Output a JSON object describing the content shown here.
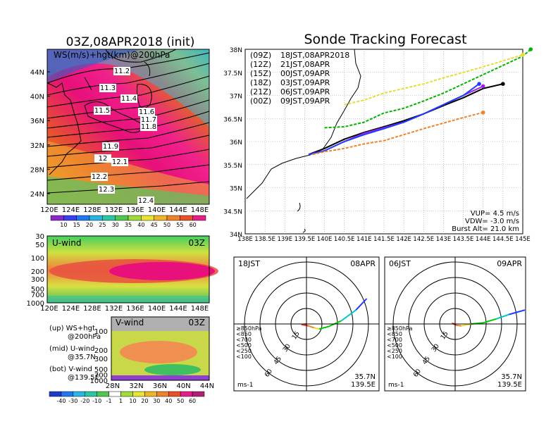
{
  "main_title": "Sonde Tracking Forecast",
  "left_title": "03Z,08APR2018 (init)",
  "ws_panel": {
    "label": "WS(m/s)+hgt(km)@200hPa",
    "lat_ticks": [
      "44N",
      "40N",
      "36N",
      "32N",
      "28N",
      "24N"
    ],
    "lon_ticks": [
      "120E",
      "124E",
      "128E",
      "132E",
      "136E",
      "140E",
      "144E",
      "148E"
    ],
    "contour_labels": [
      "11.2",
      "11.3",
      "11.4",
      "11.5",
      "11.6",
      "11.7",
      "11.8",
      "11.9",
      "12",
      "12.1",
      "12.2",
      "12.3",
      "12.4"
    ],
    "colorbar_ticks": [
      "10",
      "15",
      "20",
      "25",
      "30",
      "35",
      "40",
      "45",
      "50",
      "55",
      "60"
    ]
  },
  "u_panel": {
    "label": "U-wind",
    "time": "03Z",
    "p_ticks": [
      "30",
      "50",
      "100",
      "200",
      "300",
      "500",
      "700",
      "1000"
    ],
    "lon_ticks": [
      "120E",
      "124E",
      "128E",
      "132E",
      "136E",
      "140E",
      "144E",
      "148E"
    ]
  },
  "v_panel": {
    "label": "V-wind",
    "time": "03Z",
    "p_ticks": [
      "100",
      "200",
      "300",
      "500",
      "700",
      "1000"
    ],
    "lat_ticks": [
      "28N",
      "32N",
      "36N",
      "40N",
      "44N"
    ]
  },
  "diverging_colorbar_ticks": [
    "-40",
    "-30",
    "-20",
    "-10",
    "-1",
    "1",
    "10",
    "20",
    "30",
    "40",
    "50",
    "60"
  ],
  "legend_notes": [
    {
      "a": "(up) WS+hgt",
      "b": "@200hPa"
    },
    {
      "a": "(mid) U-wind",
      "b": "@35.7N"
    },
    {
      "a": "(bot) V-wind",
      "b": "@139.5E"
    }
  ],
  "track_panel": {
    "lat_ticks": [
      "38N",
      "37.5N",
      "37N",
      "36.5N",
      "36N",
      "35.5N",
      "35N",
      "34.5N",
      "34N"
    ],
    "lon_ticks": [
      "138E",
      "138.5E",
      "139E",
      "139.5E",
      "140E",
      "140.5E",
      "141E",
      "141.5E",
      "142E",
      "142.5E",
      "143E",
      "143.5E",
      "144E",
      "144.5E",
      "145E"
    ],
    "legend": [
      {
        "tag": "(09Z)",
        "text": "18JST,08APR2018",
        "color": "#000000"
      },
      {
        "tag": "(12Z)",
        "text": "21JST,08APR",
        "color": "#a020f0"
      },
      {
        "tag": "(15Z)",
        "text": "00JST,09APR",
        "color": "#1e3cff"
      },
      {
        "tag": "(18Z)",
        "text": "03JST,09APR",
        "color": "#00b400"
      },
      {
        "tag": "(21Z)",
        "text": "06JST,09APR",
        "color": "#e6dc32"
      },
      {
        "tag": "(00Z)",
        "text": "09JST,09APR",
        "color": "#f08228"
      }
    ],
    "params": [
      "VUP= 4.5 m/s",
      "VDW= -3.0 m/s",
      "Burst Alt= 21.0 km"
    ]
  },
  "hodographs": [
    {
      "time_left": "18JST",
      "date_right": "08APR",
      "units": "ms-1",
      "lat": "35.7N",
      "lon": "139.5E",
      "ring_labels": [
        "15",
        "30",
        "45",
        "60"
      ],
      "level_legend": [
        {
          "text": "≥850hPa",
          "color": "#f03c28"
        },
        {
          "text": "<850",
          "color": "#f08228"
        },
        {
          "text": "<700",
          "color": "#e6dc32"
        },
        {
          "text": "<500",
          "color": "#00c800"
        },
        {
          "text": "<250",
          "color": "#00c8c8"
        },
        {
          "text": "<100",
          "color": "#1e3cff"
        }
      ]
    },
    {
      "time_left": "06JST",
      "date_right": "09APR",
      "units": "ms-1",
      "lat": "35.7N",
      "lon": "139.5E",
      "ring_labels": [
        "15",
        "30",
        "45",
        "60"
      ],
      "level_legend": [
        {
          "text": "≥850hPa",
          "color": "#f03c28"
        },
        {
          "text": "<850",
          "color": "#f08228"
        },
        {
          "text": "<700",
          "color": "#e6dc32"
        },
        {
          "text": "<500",
          "color": "#00c800"
        },
        {
          "text": "<250",
          "color": "#00c8c8"
        },
        {
          "text": "<100",
          "color": "#1e3cff"
        }
      ]
    }
  ],
  "chart_data": {
    "type": "line",
    "tracks": [
      {
        "name": "(09Z)",
        "color": "#000000",
        "points": [
          [
            139.6,
            35.72
          ],
          [
            140.0,
            35.85
          ],
          [
            140.5,
            36.05
          ],
          [
            141.0,
            36.2
          ],
          [
            141.5,
            36.32
          ],
          [
            142.0,
            36.45
          ],
          [
            142.5,
            36.6
          ],
          [
            143.0,
            36.78
          ],
          [
            143.5,
            36.95
          ],
          [
            144.0,
            37.15
          ],
          [
            144.5,
            37.25
          ]
        ]
      },
      {
        "name": "(12Z)",
        "color": "#a020f0",
        "points": [
          [
            139.6,
            35.72
          ],
          [
            140.0,
            35.8
          ],
          [
            140.5,
            36.0
          ],
          [
            141.0,
            36.18
          ],
          [
            141.5,
            36.3
          ],
          [
            142.0,
            36.42
          ],
          [
            142.5,
            36.6
          ],
          [
            143.0,
            36.8
          ],
          [
            143.5,
            37.0
          ],
          [
            144.0,
            37.2
          ]
        ]
      },
      {
        "name": "(15Z)",
        "color": "#1e3cff",
        "points": [
          [
            139.6,
            35.72
          ],
          [
            140.0,
            35.8
          ],
          [
            140.5,
            36.0
          ],
          [
            141.0,
            36.15
          ],
          [
            141.5,
            36.28
          ],
          [
            142.0,
            36.42
          ],
          [
            142.5,
            36.6
          ],
          [
            143.0,
            36.8
          ],
          [
            143.5,
            37.0
          ],
          [
            143.9,
            37.25
          ]
        ]
      },
      {
        "name": "(18Z)",
        "color": "#00b400",
        "points": [
          [
            140.0,
            36.3
          ],
          [
            140.5,
            36.32
          ],
          [
            141.0,
            36.42
          ],
          [
            141.5,
            36.62
          ],
          [
            142.0,
            36.72
          ],
          [
            142.5,
            36.88
          ],
          [
            143.0,
            37.05
          ],
          [
            143.5,
            37.25
          ],
          [
            144.0,
            37.45
          ],
          [
            144.5,
            37.65
          ],
          [
            145.0,
            37.85
          ],
          [
            145.2,
            38.0
          ]
        ]
      },
      {
        "name": "(21Z)",
        "color": "#e6dc32",
        "points": [
          [
            140.5,
            36.8
          ],
          [
            141.0,
            36.9
          ],
          [
            141.5,
            37.05
          ],
          [
            142.0,
            37.15
          ],
          [
            142.5,
            37.25
          ],
          [
            143.0,
            37.38
          ],
          [
            143.5,
            37.5
          ],
          [
            144.0,
            37.62
          ],
          [
            144.5,
            37.75
          ],
          [
            145.0,
            37.88
          ]
        ]
      },
      {
        "name": "(00Z)",
        "color": "#f08228",
        "points": [
          [
            139.7,
            35.72
          ],
          [
            140.0,
            35.78
          ],
          [
            140.5,
            35.85
          ],
          [
            141.0,
            35.95
          ],
          [
            141.5,
            36.02
          ],
          [
            142.0,
            36.15
          ],
          [
            142.5,
            36.28
          ],
          [
            143.0,
            36.4
          ],
          [
            143.5,
            36.52
          ],
          [
            144.0,
            36.63
          ]
        ]
      }
    ],
    "xlim": [
      138,
      145
    ],
    "ylim": [
      34,
      38
    ]
  }
}
